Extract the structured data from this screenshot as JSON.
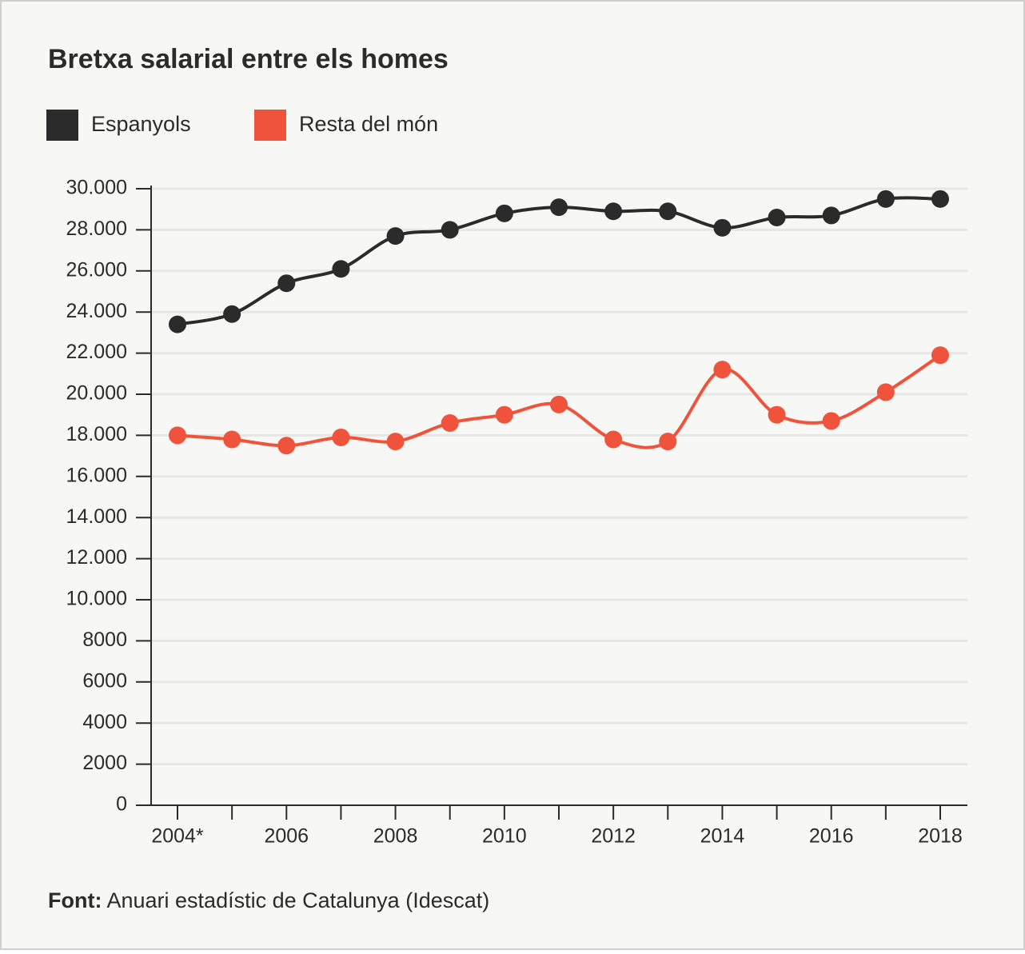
{
  "chart_data": {
    "type": "line",
    "title": "Bretxa salarial entre els homes",
    "categories": [
      "2004*",
      null,
      "2006",
      null,
      "2008",
      null,
      "2010",
      null,
      "2012",
      null,
      "2014",
      null,
      "2016",
      null,
      "2018"
    ],
    "series": [
      {
        "name": "Espanyols",
        "color": "#2b2b2b",
        "values": [
          23400,
          23900,
          25400,
          26100,
          27700,
          28000,
          28800,
          29100,
          28900,
          28900,
          28100,
          28600,
          28700,
          29500,
          29500
        ]
      },
      {
        "name": "Resta del món",
        "color": "#f0533b",
        "values": [
          18000,
          17800,
          17500,
          17900,
          17700,
          18600,
          19000,
          19500,
          17800,
          17700,
          21200,
          19000,
          18700,
          20100,
          21900
        ]
      }
    ],
    "ylim": [
      0,
      30000
    ],
    "yticks": [
      0,
      2000,
      4000,
      6000,
      8000,
      {
        "value": 10000,
        "label": "10.000"
      },
      {
        "value": 12000,
        "label": "12.000"
      },
      {
        "value": 14000,
        "label": "14.000"
      },
      {
        "value": 16000,
        "label": "16.000"
      },
      {
        "value": 18000,
        "label": "18.000"
      },
      {
        "value": 20000,
        "label": "20.000"
      },
      {
        "value": 22000,
        "label": "22.000"
      },
      {
        "value": 24000,
        "label": "24.000"
      },
      {
        "value": 26000,
        "label": "26.000"
      },
      {
        "value": 28000,
        "label": "28.000"
      },
      {
        "value": 30000,
        "label": "30.000"
      }
    ],
    "grid": true,
    "source_label": "Font:",
    "source": "Anuari estadístic de Catalunya (Idescat)"
  }
}
